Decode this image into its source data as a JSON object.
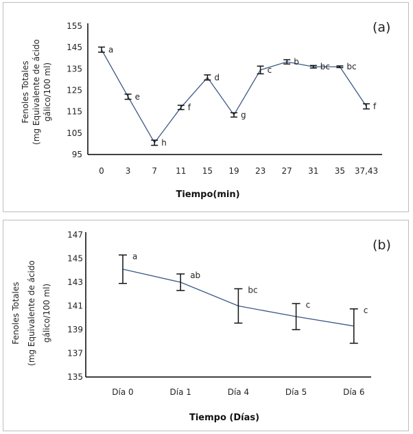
{
  "colors": {
    "line": "#3a5785",
    "axis": "#000000",
    "errorbar": "#111111",
    "frame": "#bdbdbd"
  },
  "chart_data": [
    {
      "type": "line",
      "panel_label": "(a)",
      "title": "",
      "xlabel": "Tiempo(min)",
      "ylabel_lines": [
        "Fenoles Totales",
        "(mg Equivalente de ácido",
        "gálico/100  ml)"
      ],
      "categories": [
        "0",
        "3",
        "7",
        "11",
        "15",
        "19",
        "23",
        "27",
        "31",
        "35",
        "37,43"
      ],
      "ylim": [
        95,
        155
      ],
      "yticks": [
        95,
        105,
        115,
        125,
        135,
        145,
        155
      ],
      "grid": false,
      "legend": "none",
      "series": [
        {
          "name": "Fenoles Totales",
          "values": [
            144,
            122,
            100.5,
            117,
            131,
            113.5,
            134.5,
            138.3,
            136,
            136,
            117.5
          ],
          "error": [
            1.2,
            1.2,
            1.2,
            1.0,
            1.2,
            1.0,
            1.8,
            1.0,
            0.6,
            0.4,
            1.2
          ],
          "labels": [
            "a",
            "e",
            "h",
            "f",
            "d",
            "g",
            "c",
            "b",
            "bc",
            "bc",
            "f"
          ]
        }
      ]
    },
    {
      "type": "line",
      "panel_label": "(b)",
      "title": "",
      "xlabel": "Tiempo (Días)",
      "ylabel_lines": [
        "Fenoles Totales",
        "(mg Equivalente de ácido",
        "gálico/100  ml)"
      ],
      "categories": [
        "Día 0",
        "Día 1",
        "Día 4",
        "Día 5",
        "Día 6"
      ],
      "ylim": [
        135,
        147
      ],
      "yticks": [
        135,
        137,
        139,
        141,
        143,
        145,
        147
      ],
      "grid": false,
      "legend": "none",
      "series": [
        {
          "name": "Fenoles Totales",
          "values": [
            144.1,
            143.0,
            141.0,
            140.1,
            139.3
          ],
          "error": [
            1.2,
            0.7,
            1.45,
            1.1,
            1.45
          ],
          "labels": [
            "a",
            "ab",
            "bc",
            "c",
            "c"
          ]
        }
      ]
    }
  ]
}
